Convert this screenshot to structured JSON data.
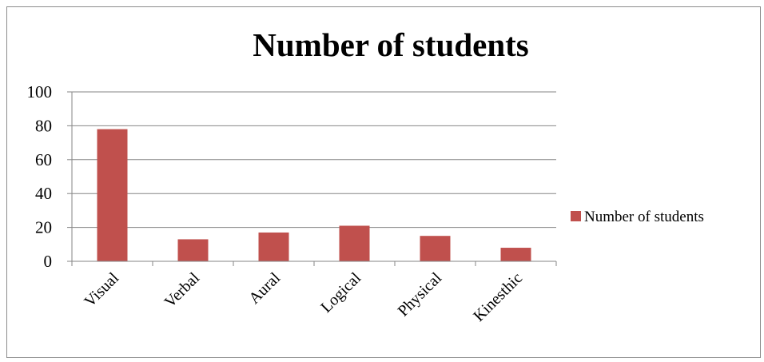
{
  "chart_data": {
    "type": "bar",
    "title": "Number of students",
    "xlabel": "",
    "ylabel": "",
    "categories": [
      "Visual",
      "Verbal",
      "Aural",
      "Logical",
      "Physical",
      "Kinesthic"
    ],
    "series": [
      {
        "name": "Number of students",
        "values": [
          78,
          13,
          17,
          21,
          15,
          8
        ],
        "color": "#c0504d"
      }
    ],
    "ylim": [
      0,
      100
    ],
    "yticks": [
      "0",
      "20",
      "40",
      "60",
      "80",
      "100"
    ],
    "grid": true,
    "legend_position": "right"
  },
  "colors": {
    "gridline": "#868686",
    "axis": "#868686",
    "text": "#000000"
  }
}
